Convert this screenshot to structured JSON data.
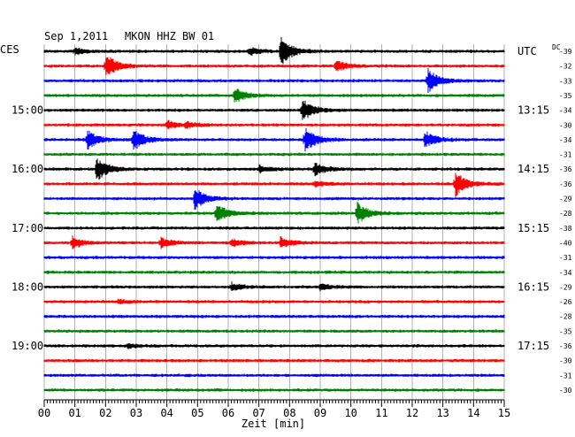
{
  "header": {
    "date": "Sep 1,2011",
    "station": "MKON HHZ BW 01",
    "left_zone": "CES",
    "right_zone": "UTC",
    "dc_label": "DC"
  },
  "chart_data": {
    "type": "line",
    "title": "Sep 1,2011   MKON HHZ BW 01",
    "xlabel": "Zeit [min]",
    "xlim": [
      0,
      15
    ],
    "x_ticks": [
      "00",
      "01",
      "02",
      "03",
      "04",
      "05",
      "06",
      "07",
      "08",
      "09",
      "10",
      "11",
      "12",
      "13",
      "14",
      "15"
    ],
    "trace_colors": [
      "#000000",
      "#ff0000",
      "#0000ff",
      "#008000"
    ],
    "left_time_labels": [
      {
        "row": 4,
        "label": "15:00"
      },
      {
        "row": 8,
        "label": "16:00"
      },
      {
        "row": 12,
        "label": "17:00"
      },
      {
        "row": 16,
        "label": "18:00"
      },
      {
        "row": 20,
        "label": "19:00"
      }
    ],
    "right_time_labels": [
      {
        "row": 0,
        "label": "UTC"
      },
      {
        "row": 4,
        "label": "13:15"
      },
      {
        "row": 8,
        "label": "14:15"
      },
      {
        "row": 12,
        "label": "15:15"
      },
      {
        "row": 16,
        "label": "16:15"
      },
      {
        "row": 20,
        "label": "17:15"
      }
    ],
    "dc_offsets": [
      -39,
      -32,
      -33,
      -35,
      -34,
      -30,
      -34,
      -31,
      -36,
      -36,
      -29,
      -28,
      -38,
      -40,
      -31,
      -34,
      -29,
      -26,
      -28,
      -35,
      -36,
      -30,
      -31,
      -30
    ],
    "events": [
      {
        "row": 0,
        "min": 1.0,
        "amp": 0.25
      },
      {
        "row": 0,
        "min": 6.7,
        "amp": 0.35
      },
      {
        "row": 0,
        "min": 7.7,
        "amp": 1.2
      },
      {
        "row": 1,
        "min": 2.0,
        "amp": 1.0
      },
      {
        "row": 1,
        "min": 9.5,
        "amp": 0.45
      },
      {
        "row": 2,
        "min": 12.5,
        "amp": 1.0
      },
      {
        "row": 3,
        "min": 6.2,
        "amp": 0.6
      },
      {
        "row": 4,
        "min": 8.4,
        "amp": 1.0
      },
      {
        "row": 5,
        "min": 4.0,
        "amp": 0.3
      },
      {
        "row": 5,
        "min": 4.6,
        "amp": 0.25
      },
      {
        "row": 6,
        "min": 1.4,
        "amp": 0.8
      },
      {
        "row": 6,
        "min": 2.9,
        "amp": 0.9
      },
      {
        "row": 6,
        "min": 8.5,
        "amp": 1.0
      },
      {
        "row": 6,
        "min": 12.4,
        "amp": 0.7
      },
      {
        "row": 8,
        "min": 1.7,
        "amp": 1.0
      },
      {
        "row": 8,
        "min": 7.0,
        "amp": 0.3
      },
      {
        "row": 8,
        "min": 8.8,
        "amp": 0.55
      },
      {
        "row": 9,
        "min": 8.8,
        "amp": 0.25
      },
      {
        "row": 9,
        "min": 13.4,
        "amp": 1.0
      },
      {
        "row": 10,
        "min": 4.9,
        "amp": 0.9
      },
      {
        "row": 11,
        "min": 5.6,
        "amp": 0.8
      },
      {
        "row": 11,
        "min": 10.2,
        "amp": 0.9
      },
      {
        "row": 13,
        "min": 0.9,
        "amp": 0.5
      },
      {
        "row": 13,
        "min": 3.8,
        "amp": 0.4
      },
      {
        "row": 13,
        "min": 6.1,
        "amp": 0.3
      },
      {
        "row": 13,
        "min": 7.7,
        "amp": 0.45
      },
      {
        "row": 16,
        "min": 6.1,
        "amp": 0.3
      },
      {
        "row": 16,
        "min": 9.0,
        "amp": 0.25
      },
      {
        "row": 17,
        "min": 2.4,
        "amp": 0.15
      },
      {
        "row": 20,
        "min": 2.7,
        "amp": 0.2
      }
    ]
  }
}
